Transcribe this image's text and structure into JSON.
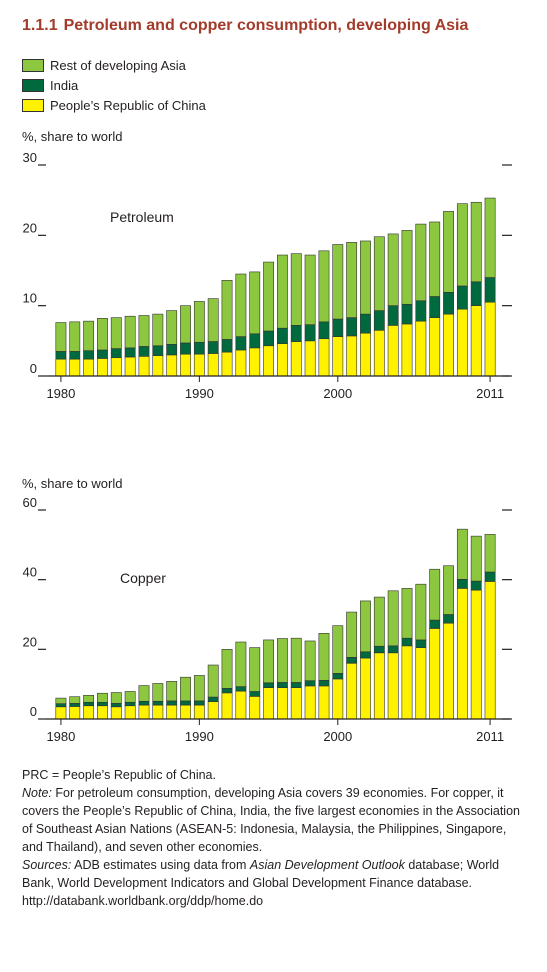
{
  "header": {
    "number": "1.1.1",
    "title": "Petroleum and copper consumption, developing Asia"
  },
  "colors": {
    "rest": "#8dc63f",
    "india": "#00693e",
    "prc": "#fff200",
    "title": "#a33a2a"
  },
  "legend": [
    {
      "label": "Rest of developing Asia",
      "color": "#8dc63f"
    },
    {
      "label": "India",
      "color": "#00693e"
    },
    {
      "label": "People’s Republic of China",
      "color": "#fff200"
    }
  ],
  "chart_data": [
    {
      "type": "bar",
      "stacked": true,
      "annotation": "Petroleum",
      "ylabel": "%, share to world",
      "ylim": [
        0,
        30
      ],
      "yticks": [
        0,
        10,
        20,
        30
      ],
      "xticks": [
        "1980",
        "1990",
        "2000",
        "2011"
      ],
      "categories": [
        "1980",
        "1981",
        "1982",
        "1983",
        "1984",
        "1985",
        "1986",
        "1987",
        "1988",
        "1989",
        "1990",
        "1991",
        "1992",
        "1993",
        "1994",
        "1995",
        "1996",
        "1997",
        "1998",
        "1999",
        "2000",
        "2001",
        "2002",
        "2003",
        "2004",
        "2005",
        "2006",
        "2007",
        "2008",
        "2009",
        "2010",
        "2011"
      ],
      "series": [
        {
          "name": "People’s Republic of China",
          "values": [
            2.4,
            2.4,
            2.4,
            2.5,
            2.6,
            2.7,
            2.8,
            2.9,
            3.0,
            3.1,
            3.1,
            3.2,
            3.4,
            3.7,
            4.0,
            4.3,
            4.6,
            4.9,
            5.0,
            5.3,
            5.6,
            5.7,
            6.1,
            6.5,
            7.2,
            7.4,
            7.8,
            8.3,
            8.8,
            9.5,
            10.0,
            10.5
          ]
        },
        {
          "name": "India",
          "values": [
            1.1,
            1.1,
            1.2,
            1.2,
            1.3,
            1.3,
            1.4,
            1.4,
            1.5,
            1.6,
            1.7,
            1.7,
            1.8,
            1.9,
            2.0,
            2.1,
            2.2,
            2.3,
            2.3,
            2.4,
            2.5,
            2.6,
            2.7,
            2.8,
            2.8,
            2.8,
            2.9,
            3.0,
            3.1,
            3.3,
            3.4,
            3.5
          ]
        },
        {
          "name": "Rest of developing Asia",
          "values": [
            4.1,
            4.2,
            4.2,
            4.5,
            4.4,
            4.5,
            4.4,
            4.5,
            4.8,
            5.3,
            5.8,
            6.1,
            8.4,
            8.9,
            8.8,
            9.8,
            10.4,
            10.2,
            9.9,
            10.1,
            10.6,
            10.7,
            10.4,
            10.5,
            10.2,
            10.5,
            10.9,
            10.6,
            11.5,
            11.7,
            11.3,
            11.3
          ]
        }
      ]
    },
    {
      "type": "bar",
      "stacked": true,
      "annotation": "Copper",
      "ylabel": "%, share to world",
      "ylim": [
        0,
        60
      ],
      "yticks": [
        0,
        20,
        40,
        60
      ],
      "xticks": [
        "1980",
        "1990",
        "2000",
        "2011"
      ],
      "categories": [
        "1980",
        "1981",
        "1982",
        "1983",
        "1984",
        "1985",
        "1986",
        "1987",
        "1988",
        "1989",
        "1990",
        "1991",
        "1992",
        "1993",
        "1994",
        "1995",
        "1996",
        "1997",
        "1998",
        "1999",
        "2000",
        "2001",
        "2002",
        "2003",
        "2004",
        "2005",
        "2006",
        "2007",
        "2008",
        "2009",
        "2010",
        "2011"
      ],
      "series": [
        {
          "name": "People’s Republic of China",
          "values": [
            3.5,
            3.6,
            3.8,
            3.8,
            3.5,
            3.8,
            4.0,
            4.0,
            4.0,
            4.0,
            4.0,
            5.0,
            7.5,
            8.0,
            6.5,
            9.0,
            9.0,
            9.0,
            9.5,
            9.5,
            11.5,
            16.0,
            17.5,
            19.0,
            19.0,
            21.0,
            20.5,
            26.0,
            27.5,
            37.5,
            37.0,
            39.5
          ]
        },
        {
          "name": "India",
          "values": [
            0.9,
            0.9,
            1.0,
            1.0,
            1.0,
            1.0,
            1.1,
            1.1,
            1.2,
            1.2,
            1.2,
            1.3,
            1.3,
            1.3,
            1.4,
            1.4,
            1.5,
            1.5,
            1.5,
            1.6,
            1.6,
            1.7,
            1.8,
            1.9,
            2.0,
            2.2,
            2.2,
            2.4,
            2.5,
            2.6,
            2.6,
            2.7
          ]
        },
        {
          "name": "Rest of developing Asia",
          "values": [
            1.6,
            1.9,
            2.0,
            2.6,
            3.1,
            3.1,
            4.5,
            5.1,
            5.6,
            6.8,
            7.3,
            9.2,
            11.2,
            12.8,
            12.6,
            12.3,
            12.6,
            12.7,
            11.4,
            13.5,
            13.7,
            13.0,
            14.6,
            14.1,
            15.8,
            14.3,
            16.0,
            14.6,
            14.0,
            14.4,
            12.9,
            10.8
          ]
        }
      ]
    }
  ],
  "notes": {
    "prc": "PRC = People’s Republic of China.",
    "note_label": "Note:",
    "note_text": " For petroleum consumption, developing Asia covers 39 economies. For copper, it covers the People’s Republic of China, India, the five largest economies in the Association of Southeast Asian Nations (ASEAN-5: Indonesia, Malaysia, the Philippines, Singapore, and Thailand), and seven other economies.",
    "sources_label": "Sources:",
    "sources_text1": " ADB estimates using data from ",
    "sources_italic": "Asian Development Outlook",
    "sources_text2": " database; World Bank, World Development Indicators and Global Development Finance database. http://databank.worldbank.org/ddp/home.do"
  }
}
